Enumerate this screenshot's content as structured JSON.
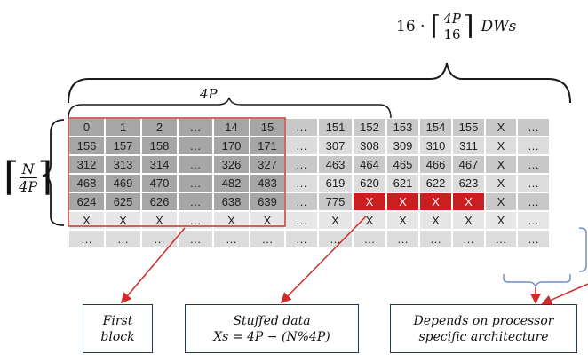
{
  "top_formula": {
    "prefix": "16 ·",
    "numerator": "4P",
    "denominator": "16",
    "unit": "DWs"
  },
  "label_4p": "4P",
  "left_formula": {
    "numerator": "N",
    "denominator": "4P"
  },
  "grid": {
    "rows": [
      [
        "0",
        "1",
        "2",
        "…",
        "14",
        "15",
        "…",
        "151",
        "152",
        "153",
        "154",
        "155",
        "X",
        "…"
      ],
      [
        "156",
        "157",
        "158",
        "…",
        "170",
        "171",
        "…",
        "307",
        "308",
        "309",
        "310",
        "311",
        "X",
        "…"
      ],
      [
        "312",
        "313",
        "314",
        "…",
        "326",
        "327",
        "…",
        "463",
        "464",
        "465",
        "466",
        "467",
        "X",
        "…"
      ],
      [
        "468",
        "469",
        "470",
        "…",
        "482",
        "483",
        "…",
        "619",
        "620",
        "621",
        "622",
        "623",
        "X",
        "…"
      ],
      [
        "624",
        "625",
        "626",
        "…",
        "638",
        "639",
        "…",
        "775",
        "X",
        "X",
        "X",
        "X",
        "X",
        "…"
      ],
      [
        "X",
        "X",
        "X",
        "…",
        "X",
        "X",
        "…",
        "X",
        "X",
        "X",
        "X",
        "X",
        "X",
        "…"
      ],
      [
        "…",
        "…",
        "…",
        "…",
        "…",
        "…",
        "…",
        "…",
        "…",
        "…",
        "…",
        "…",
        "…",
        "…"
      ]
    ]
  },
  "callouts": {
    "first_block": {
      "line1": "First",
      "line2": "block"
    },
    "stuffed": {
      "line1": "Stuffed data",
      "line2": "Xs = 4P  − (N%4P)"
    },
    "depends": {
      "line1": "Depends on processor",
      "line2": "specific architecture"
    }
  },
  "colors": {
    "red": "#c8201f",
    "outline_red": "#c0392b",
    "box_border": "#1f3864",
    "bracket": "#1a1a1a",
    "blue_bracket": "#6f8fc0"
  }
}
